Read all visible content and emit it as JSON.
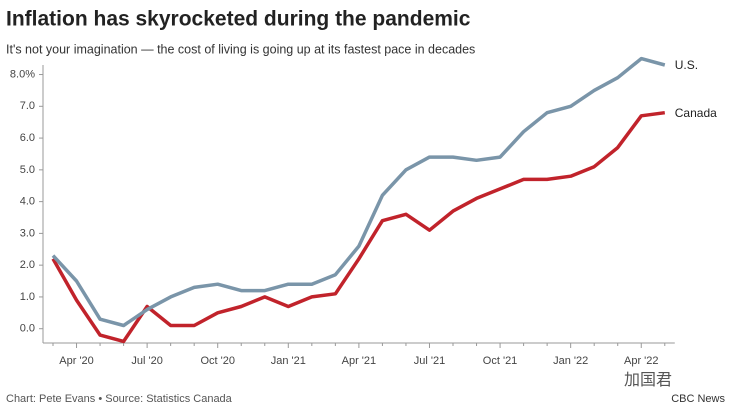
{
  "chart_data": {
    "type": "line",
    "title": "Inflation has skyrocketed during the pandemic",
    "subtitle": "It's not your imagination — the cost of living is going up at its fastest pace in decades",
    "categories": [
      null,
      "Apr '20",
      null,
      null,
      "Jul '20",
      null,
      null,
      "Oct '20",
      null,
      null,
      "Jan '21",
      null,
      null,
      "Apr '21",
      null,
      null,
      "Jul '21",
      null,
      null,
      "Oct '21",
      null,
      null,
      "Jan '22",
      null,
      null,
      "Apr '22",
      null
    ],
    "series": [
      {
        "name": "U.S.",
        "color": "#7a95a9",
        "values": [
          2.3,
          1.5,
          0.3,
          0.1,
          0.6,
          1.0,
          1.3,
          1.4,
          1.2,
          1.2,
          1.4,
          1.4,
          1.7,
          2.6,
          4.2,
          5.0,
          5.4,
          5.4,
          5.3,
          5.4,
          6.2,
          6.8,
          7.0,
          7.5,
          7.9,
          8.5,
          8.3
        ]
      },
      {
        "name": "Canada",
        "color": "#c1232b",
        "values": [
          2.2,
          0.9,
          -0.2,
          -0.4,
          0.7,
          0.1,
          0.1,
          0.5,
          0.7,
          1.0,
          0.7,
          1.0,
          1.1,
          2.2,
          3.4,
          3.6,
          3.1,
          3.7,
          4.1,
          4.4,
          4.7,
          4.7,
          4.8,
          5.1,
          5.7,
          6.7,
          6.8
        ]
      }
    ],
    "ylim": [
      -0.45,
      8.3
    ],
    "yticks": [
      {
        "value": 0,
        "label": "0.0"
      },
      {
        "value": 1,
        "label": "1.0"
      },
      {
        "value": 2,
        "label": "2.0"
      },
      {
        "value": 3,
        "label": "3.0"
      },
      {
        "value": 4,
        "label": "4.0"
      },
      {
        "value": 5,
        "label": "5.0"
      },
      {
        "value": 6,
        "label": "6.0"
      },
      {
        "value": 7,
        "label": "7.0"
      },
      {
        "value": 8,
        "label": "8.0%"
      }
    ],
    "grid": false,
    "source": "Chart: Pete Evans • Source: Statistics Canada",
    "watermark": "加国君",
    "credit": "CBC News"
  }
}
